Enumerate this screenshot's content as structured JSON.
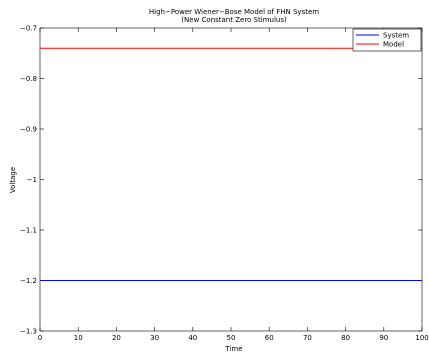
{
  "chart_data": {
    "type": "line",
    "title": "High−Power Wiener−Bose Model of FHN System",
    "subtitle": "(New Constant Zero Stimulus)",
    "xlabel": "Time",
    "ylabel": "Voltage",
    "xlim": [
      0,
      100
    ],
    "ylim": [
      -1.3,
      -0.7
    ],
    "xticks": [
      0,
      10,
      20,
      30,
      40,
      50,
      60,
      70,
      80,
      90,
      100
    ],
    "yticks": [
      -1.3,
      -1.2,
      -1.1,
      -1.0,
      -0.9,
      -0.8,
      -0.7
    ],
    "xtick_labels": [
      "0",
      "10",
      "20",
      "30",
      "40",
      "50",
      "60",
      "70",
      "80",
      "90",
      "100"
    ],
    "ytick_labels": [
      "−1.3",
      "−1.2",
      "−1.1",
      "−1",
      "−0.9",
      "−0.8",
      "−0.7"
    ],
    "legend_position": "top-right",
    "grid": false,
    "series": [
      {
        "name": "System",
        "color": "#0000ff",
        "x": [
          0,
          100
        ],
        "y": [
          -1.2,
          -1.2
        ]
      },
      {
        "name": "Model",
        "color": "#ff0000",
        "x": [
          0,
          100
        ],
        "y": [
          -0.74,
          -0.74
        ]
      }
    ]
  }
}
